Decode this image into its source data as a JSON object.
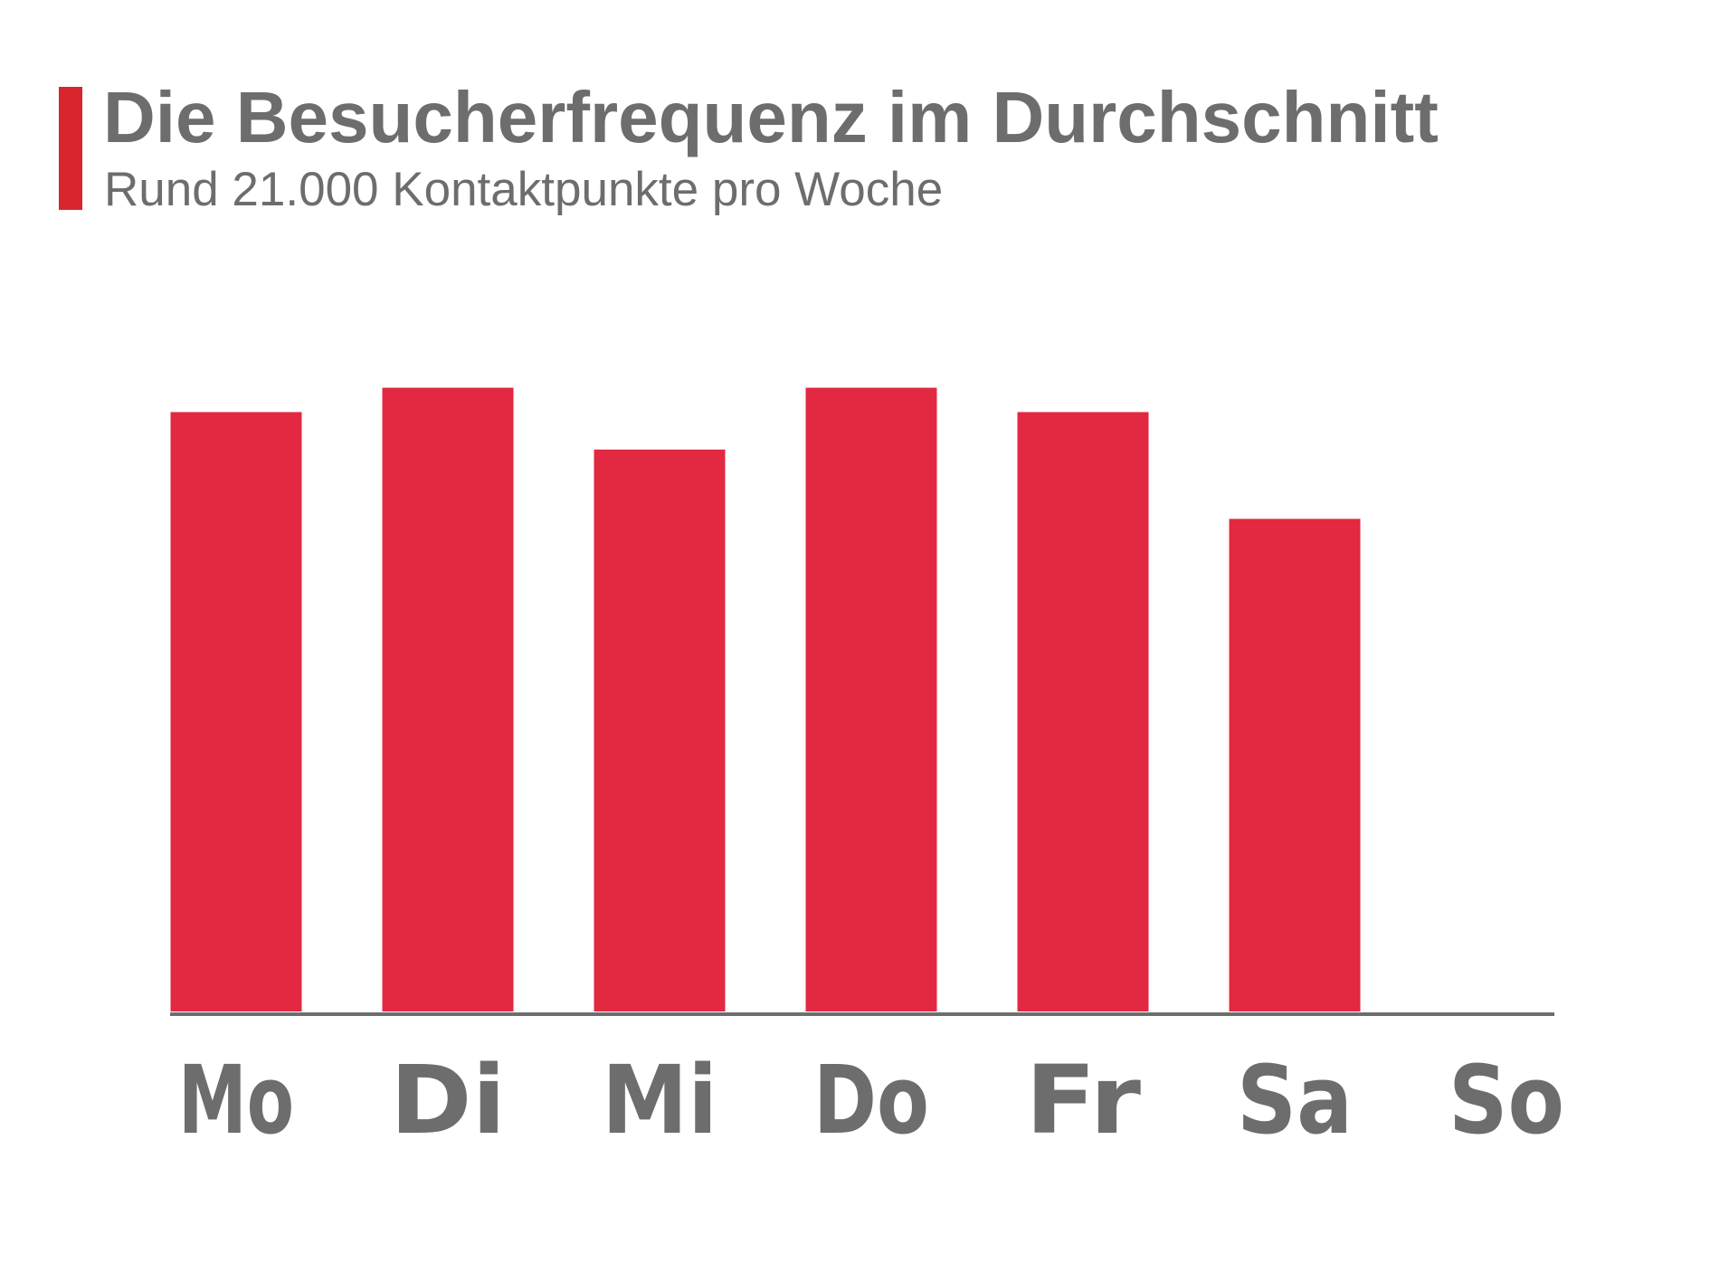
{
  "header": {
    "title": "Die Besucherfrequenz im Durchschnitt",
    "subtitle": "Rund 21.000 Kontaktpunkte pro Woche"
  },
  "colors": {
    "accent": "#d9262e",
    "bar": "#e32841",
    "text": "#6d6d6d",
    "axis": "#6d6d6d"
  },
  "chart_data": {
    "type": "bar",
    "title": "Die Besucherfrequenz im Durchschnitt",
    "subtitle": "Rund 21.000 Kontaktpunkte pro Woche",
    "categories": [
      "Mo",
      "Di",
      "Mi",
      "Do",
      "Fr",
      "Sa",
      "So"
    ],
    "values": [
      3200,
      3330,
      3000,
      3330,
      3200,
      2630,
      0
    ],
    "xlabel": "",
    "ylabel": "",
    "ylim": [
      0,
      5400
    ],
    "grid": false,
    "legend": "none"
  }
}
